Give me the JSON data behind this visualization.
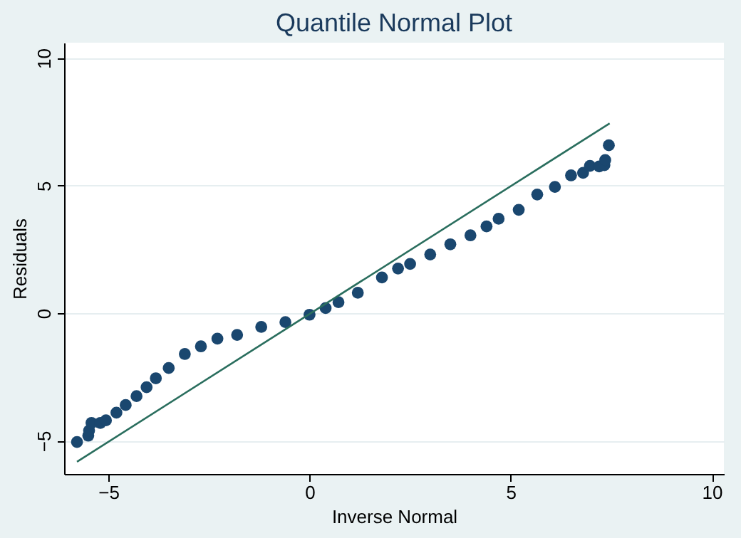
{
  "chart_data": {
    "type": "scatter",
    "title": "Quantile Normal Plot",
    "xlabel": "Inverse Normal",
    "ylabel": "Residuals",
    "xlim": [
      -6.1,
      10.3
    ],
    "ylim": [
      -6.3,
      10.6
    ],
    "xticks": [
      -5,
      0,
      5,
      10
    ],
    "yticks": [
      -5,
      0,
      5,
      10
    ],
    "grid": "y",
    "series": [
      {
        "marker": "circle",
        "color": "#1a476f",
        "x": [
          -5.78,
          -5.5,
          -5.48,
          -5.42,
          -5.2,
          -5.06,
          -4.8,
          -4.57,
          -4.3,
          -4.05,
          -3.82,
          -3.5,
          -3.1,
          -2.7,
          -2.29,
          -1.8,
          -1.2,
          -0.6,
          0,
          0.4,
          0.72,
          1.2,
          1.8,
          2.2,
          2.5,
          3,
          3.5,
          4,
          4.4,
          4.7,
          5.2,
          5.66,
          6.1,
          6.5,
          6.8,
          6.97,
          7.2,
          7.33,
          7.35,
          7.44
        ],
        "values": [
          -5.05,
          -4.8,
          -4.6,
          -4.3,
          -4.3,
          -4.2,
          -3.9,
          -3.6,
          -3.25,
          -2.9,
          -2.55,
          -2.15,
          -1.6,
          -1.3,
          -1.0,
          -0.85,
          -0.54,
          -0.35,
          -0.06,
          0.2,
          0.43,
          0.8,
          1.4,
          1.75,
          1.93,
          2.3,
          2.7,
          3.05,
          3.4,
          3.7,
          4.05,
          4.65,
          4.95,
          5.4,
          5.5,
          5.77,
          5.75,
          5.8,
          6.0,
          6.58
        ]
      },
      {
        "type": "line",
        "marker": "none",
        "line_style": "solid",
        "color": "#2a6e5e",
        "x": [
          -5.78,
          7.46
        ],
        "values": [
          -5.82,
          7.44
        ]
      }
    ]
  }
}
